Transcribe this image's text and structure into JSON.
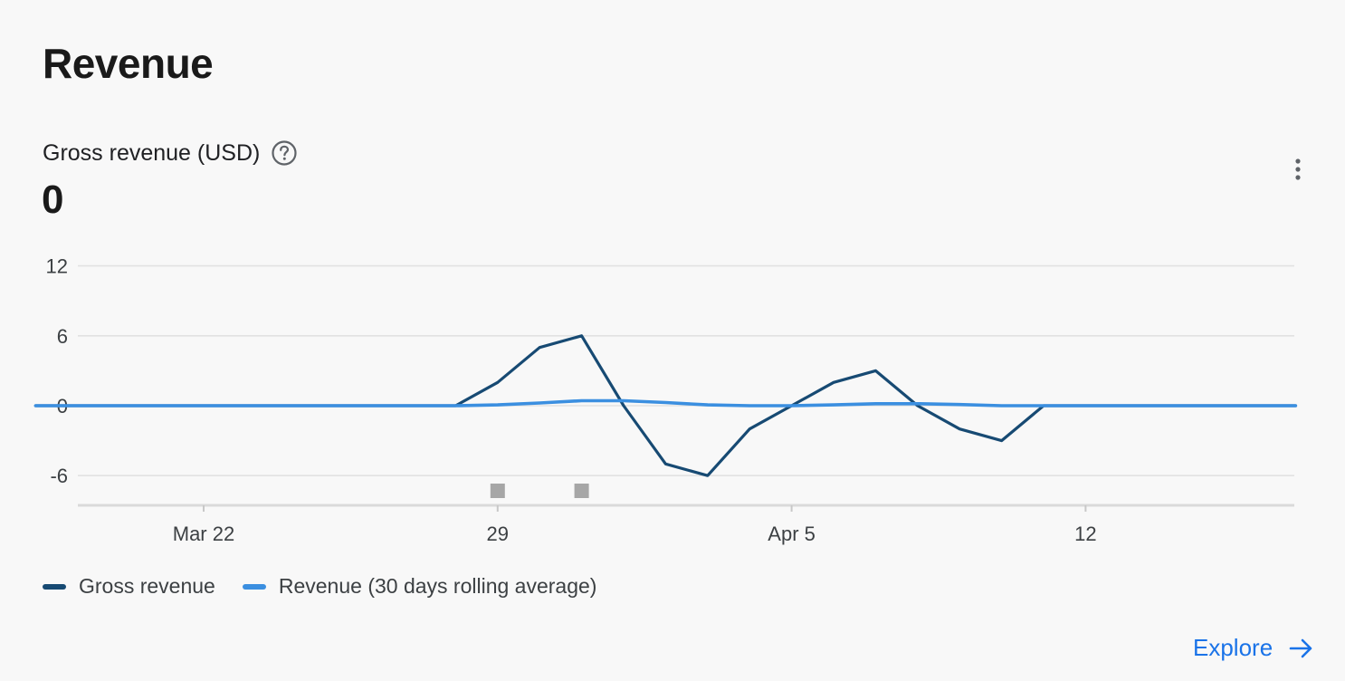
{
  "card": {
    "title": "Revenue",
    "metric_label": "Gross revenue (USD)",
    "metric_value": "0",
    "explore_label": "Explore"
  },
  "icons": {
    "help": "help-circle-icon",
    "more": "more-vert-icon",
    "explore": "arrow-right-icon"
  },
  "colors": {
    "gross": "#174a73",
    "rolling": "#3b8fe0",
    "accent": "#1a73e8",
    "marker": "#a6a6a6"
  },
  "chart_data": {
    "type": "line",
    "x": [
      "Mar 18",
      "Mar 19",
      "Mar 20",
      "Mar 21",
      "Mar 22",
      "Mar 23",
      "Mar 24",
      "Mar 25",
      "Mar 26",
      "Mar 27",
      "Mar 28",
      "Mar 29",
      "Mar 30",
      "Mar 31",
      "Apr 1",
      "Apr 2",
      "Apr 3",
      "Apr 4",
      "Apr 5",
      "Apr 6",
      "Apr 7",
      "Apr 8",
      "Apr 9",
      "Apr 10",
      "Apr 11",
      "Apr 12",
      "Apr 13",
      "Apr 14",
      "Apr 15",
      "Apr 16",
      "Apr 17"
    ],
    "x_ticks": [
      {
        "x": "Mar 22",
        "label": "Mar 22"
      },
      {
        "x": "Mar 29",
        "label": "29"
      },
      {
        "x": "Apr 5",
        "label": "Apr 5"
      },
      {
        "x": "Apr 12",
        "label": "12"
      }
    ],
    "y_ticks": [
      12,
      6,
      0,
      -6
    ],
    "ylim": [
      -8.5,
      12
    ],
    "grid": true,
    "legend": "bottom-left",
    "series": [
      {
        "name": "Gross revenue",
        "color": "#174a73",
        "values": [
          0,
          0,
          0,
          0,
          0,
          0,
          0,
          0,
          0,
          0,
          0,
          2,
          5,
          6,
          0,
          -5,
          -6,
          -2,
          0,
          2,
          3,
          0,
          -2,
          -3,
          0,
          0,
          0,
          0,
          0,
          0,
          0
        ]
      },
      {
        "name": "Revenue (30 days rolling average)",
        "color": "#3b8fe0",
        "values": [
          0,
          0,
          0,
          0,
          0,
          0,
          0,
          0,
          0,
          0,
          0,
          0.07,
          0.23,
          0.43,
          0.43,
          0.27,
          0.07,
          0,
          0,
          0.07,
          0.17,
          0.17,
          0.1,
          0,
          0,
          0,
          0,
          0,
          0,
          0,
          0
        ]
      }
    ],
    "markers": [
      "Mar 29",
      "Mar 31"
    ]
  }
}
